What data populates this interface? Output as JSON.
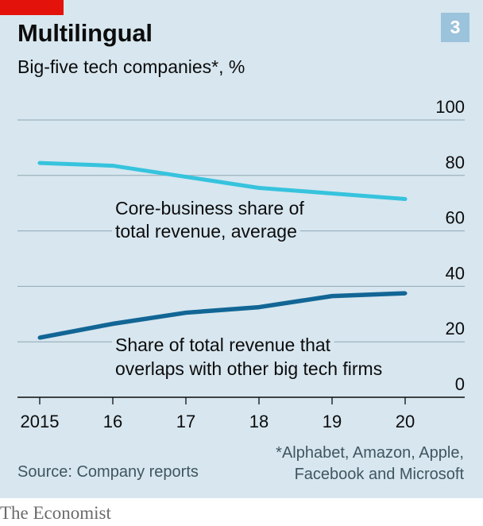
{
  "header": {
    "title": "Multilingual",
    "subtitle": "Big-five tech companies*, %",
    "badge": "3"
  },
  "footer": {
    "source": "Source: Company reports",
    "footnote_line1": "*Alphabet, Amazon, Apple,",
    "footnote_line2": "Facebook and Microsoft",
    "logo": "The Economist"
  },
  "colors": {
    "background": "#d7e6ef",
    "accent_red": "#e3120b",
    "badge": "#9cc3dc",
    "core_series": "#36c3dd",
    "overlap_series": "#126695",
    "gridline": "#8fa7b4"
  },
  "chart_data": {
    "type": "line",
    "title": "Multilingual",
    "subtitle": "Big-five tech companies*, %",
    "x": [
      2015,
      2016,
      2017,
      2018,
      2019,
      2020
    ],
    "x_tick_labels": [
      "2015",
      "16",
      "17",
      "18",
      "19",
      "20"
    ],
    "ylim": [
      0,
      100
    ],
    "y_ticks": [
      0,
      20,
      40,
      60,
      80,
      100
    ],
    "y_tick_labels": [
      "0",
      "20",
      "40",
      "60",
      "80",
      "100"
    ],
    "y_axis_side": "right",
    "grid": true,
    "legend": "none",
    "series": [
      {
        "name": "Core-business share of total revenue, average",
        "label_lines": [
          "Core-business share of",
          "total revenue, average"
        ],
        "color": "#36c3dd",
        "values": [
          84.5,
          83.5,
          79.5,
          75.5,
          73.5,
          71.5
        ]
      },
      {
        "name": "Share of total revenue that overlaps with other big tech firms",
        "label_lines": [
          "Share of total revenue that",
          "overlaps with other big tech firms"
        ],
        "color": "#126695",
        "values": [
          21.5,
          26.5,
          30.5,
          32.5,
          36.5,
          37.5
        ]
      }
    ]
  }
}
